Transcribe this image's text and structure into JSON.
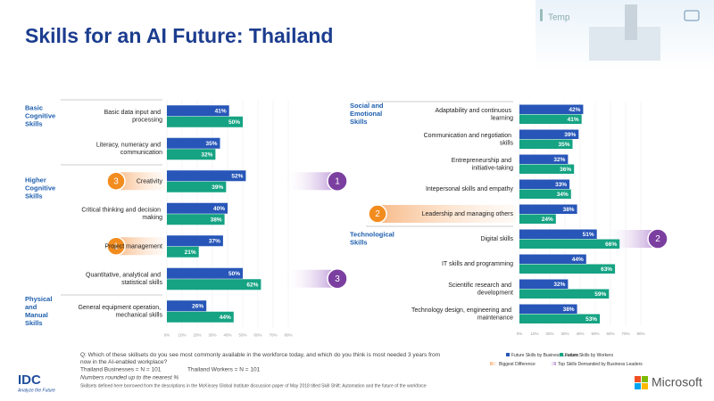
{
  "title": "Skills for an AI Future: Thailand",
  "header": {
    "temp": "Temp"
  },
  "chart_data": [
    {
      "type": "bar",
      "orientation": "horizontal",
      "categories": [
        "Basic data input and processing",
        "Literacy, numeracy and communication",
        "Creativity",
        "Critical thinking and decision making",
        "Project management",
        "Quantitative, analytical and statistical skills",
        "General equipment operation, mechanical skills"
      ],
      "groups": [
        "Basic Cognitive Skills",
        null,
        "Higher Cognitive Skills",
        null,
        null,
        null,
        "Physical and Manual Skills"
      ],
      "series": [
        {
          "color": "#2756b8",
          "values": [
            41,
            35,
            52,
            40,
            37,
            50,
            26
          ],
          "value_labels": [
            "41%",
            "35%",
            "52%",
            "40%",
            "37%",
            "50%",
            "26%"
          ]
        },
        {
          "color": "#15a383",
          "values": [
            50,
            32,
            39,
            38,
            21,
            62,
            44
          ],
          "value_labels": [
            "50%",
            "32%",
            "39%",
            "38%",
            "21%",
            "62%",
            "44%"
          ]
        }
      ],
      "difference_ranks": [
        null,
        null,
        3,
        null,
        1,
        null,
        null
      ],
      "demand_ranks": [
        null,
        null,
        1,
        null,
        null,
        3,
        null
      ],
      "xlim": [
        0,
        80
      ],
      "xticks": [
        {
          "value": 0,
          "label": "0%"
        },
        {
          "value": 10,
          "label": "10%"
        },
        {
          "value": 20,
          "label": "20%"
        },
        {
          "value": 30,
          "label": "30%"
        },
        {
          "value": 40,
          "label": "40%"
        },
        {
          "value": 50,
          "label": "50%"
        },
        {
          "value": 60,
          "label": "60%"
        },
        {
          "value": 70,
          "label": "70%"
        },
        {
          "value": 80,
          "label": "80%"
        }
      ]
    },
    {
      "type": "bar",
      "orientation": "horizontal",
      "categories": [
        "Adaptability and continuous learning",
        "Communication and negotiation skills",
        "Entrepreneurship and initiative-taking",
        "Intepersonal skills and empathy",
        "Leadership and managing others",
        "Digital skills",
        "IT skills and programming",
        "Scientific research and development",
        "Technology design, engineering and maintenance"
      ],
      "groups": [
        "Social and Emotional Skills",
        null,
        null,
        null,
        null,
        "Technological Skills",
        null,
        null,
        null
      ],
      "series": [
        {
          "name": "Future Skills by Business Leaders",
          "color": "#2756b8",
          "values": [
            42,
            39,
            32,
            33,
            38,
            51,
            44,
            32,
            38
          ],
          "value_labels": [
            "42%",
            "39%",
            "32%",
            "33%",
            "38%",
            "51%",
            "44%",
            "32%",
            "38%"
          ]
        },
        {
          "name": "Future Skills by Workers",
          "color": "#15a383",
          "values": [
            41,
            35,
            36,
            34,
            24,
            66,
            63,
            59,
            53
          ],
          "value_labels": [
            "41%",
            "35%",
            "36%",
            "34%",
            "24%",
            "66%",
            "63%",
            "59%",
            "53%"
          ]
        }
      ],
      "difference_ranks": [
        null,
        null,
        null,
        null,
        2,
        null,
        null,
        null,
        null
      ],
      "demand_ranks": [
        null,
        null,
        null,
        null,
        null,
        2,
        null,
        null,
        null
      ],
      "xlim": [
        0,
        80
      ],
      "xticks": [
        {
          "value": 0,
          "label": "0%"
        },
        {
          "value": 10,
          "label": "10%"
        },
        {
          "value": 20,
          "label": "20%"
        },
        {
          "value": 30,
          "label": "30%"
        },
        {
          "value": 40,
          "label": "40%"
        },
        {
          "value": 50,
          "label": "50%"
        },
        {
          "value": 60,
          "label": "60%"
        },
        {
          "value": 70,
          "label": "70%"
        },
        {
          "value": 80,
          "label": "80%"
        }
      ]
    }
  ],
  "highlight_legend": {
    "difference": "Biggest Difference",
    "demand": "Top Skills Demanded by Business Leaders"
  },
  "footer": {
    "question": "Q: Which of these skillsets do you see most commonly available in the workforce today, and which do you think is most needed 3 years from now in the AI-enabled workplace?",
    "businesses": "Thailand Businesses = N = 101",
    "workers": "Thailand Workers = N = 101",
    "note": "Numbers rounded up to the nearest %",
    "source": "Skillsets defined here borrowed from the descriptions in the McKinsey Global Institute discussion paper of May 2018 titled Skill Shift: Automation and the future of the workforce"
  },
  "logos": {
    "idc": "IDC",
    "idc_tagline": "Analyze the Future",
    "microsoft": "Microsoft"
  }
}
